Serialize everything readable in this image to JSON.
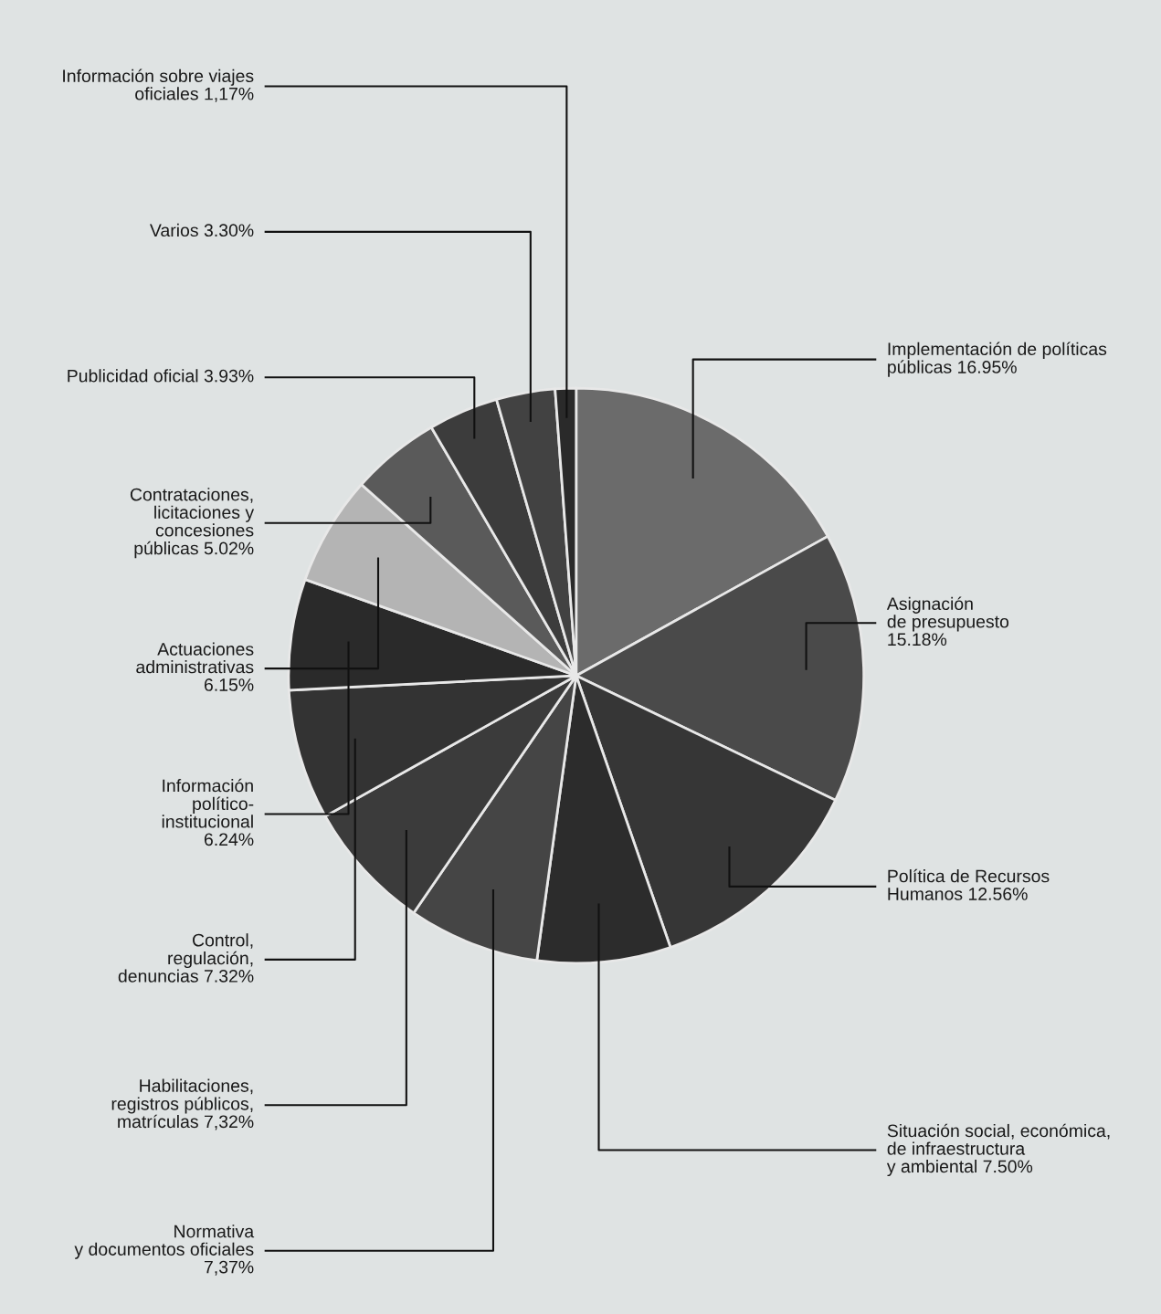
{
  "chart_data": {
    "type": "pie",
    "categories": [
      "Implementación de políticas\npúblicas",
      "Asignación\nde presupuesto\n",
      "Política de Recursos\nHumanos",
      "Situación social, económica,\nde infraestructura\ny ambiental",
      "Normativa\ny documentos oficiales\n",
      "Habilitaciones,\nregistros públicos,\nmatrículas",
      "Control,\nregulación,\ndenuncias",
      "Información\npolítico-\ninstitucional\n",
      "Actuaciones\nadministrativas\n",
      "Contrataciones,\nlicitaciones y\nconcesiones\npúblicas",
      "Publicidad oficial",
      "Varios",
      "Información sobre viajes\noficiales"
    ],
    "values": [
      16.95,
      15.18,
      12.56,
      7.5,
      7.37,
      7.32,
      7.32,
      6.24,
      6.15,
      5.02,
      3.93,
      3.3,
      1.17
    ],
    "value_labels": [
      "16.95%",
      "15.18%",
      "12.56%",
      "7.50%",
      "7,37%",
      "7,32%",
      "7.32%",
      "6.24%",
      "6.15%",
      "5.02%",
      "3.93%",
      "3.30%",
      "1,17%"
    ],
    "colors": [
      "#6b6b6b",
      "#4a4a4a",
      "#363636",
      "#2c2c2c",
      "#454545",
      "#3b3b3b",
      "#333333",
      "#2a2a2a",
      "#b4b4b4",
      "#5a5a5a",
      "#3c3c3c",
      "#424242",
      "#2a2a2a"
    ],
    "legend": false
  }
}
